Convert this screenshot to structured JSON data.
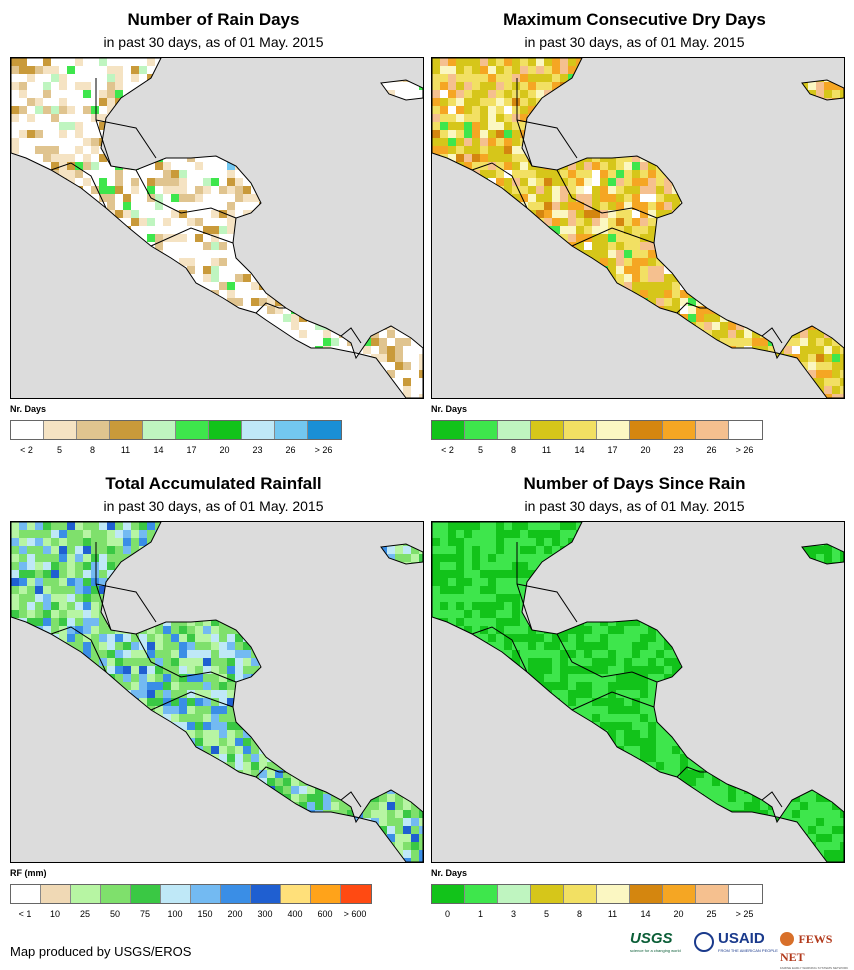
{
  "panels": [
    {
      "id": "rain-days",
      "title": "Number of Rain Days",
      "subtitle": "in past 30 days, as of 01 May. 2015",
      "legend_title": "Nr. Days",
      "legend_colors": [
        "#ffffff",
        "#f5e3c3",
        "#e0c48f",
        "#c99a3a",
        "#bff5c0",
        "#3ee64c",
        "#12c31a",
        "#bfe8f7",
        "#73c7f0",
        "#1a8fd6"
      ],
      "legend_labels": [
        "< 2",
        "5",
        "8",
        "11",
        "14",
        "17",
        "20",
        "23",
        "26",
        "> 26"
      ],
      "map_palette": [
        "#ffffff",
        "#f5e3c3",
        "#e0c48f",
        "#c99a3a",
        "#bff5c0",
        "#3ee64c",
        "#73c7f0"
      ],
      "map_weights": [
        0.55,
        0.2,
        0.12,
        0.05,
        0.04,
        0.03,
        0.01
      ]
    },
    {
      "id": "max-dry-days",
      "title": "Maximum Consecutive Dry Days",
      "subtitle": "in past 30 days, as of 01 May. 2015",
      "legend_title": "Nr. Days",
      "legend_colors": [
        "#12c31a",
        "#3ee64c",
        "#bff5c0",
        "#d6c61a",
        "#f2e063",
        "#fbf7c2",
        "#d4860f",
        "#f5a623",
        "#f5c08f",
        "#ffffff"
      ],
      "legend_labels": [
        "< 2",
        "5",
        "8",
        "11",
        "14",
        "17",
        "20",
        "23",
        "26",
        "> 26"
      ],
      "map_palette": [
        "#d6c61a",
        "#f2e063",
        "#fbf7c2",
        "#f5a623",
        "#f5c08f",
        "#ffffff",
        "#3ee64c",
        "#d4860f"
      ],
      "map_weights": [
        0.3,
        0.25,
        0.08,
        0.12,
        0.12,
        0.05,
        0.04,
        0.04
      ]
    },
    {
      "id": "total-rainfall",
      "title": "Total Accumulated Rainfall",
      "subtitle": "in past 30 days, as of 01 May. 2015",
      "legend_title": "RF (mm)",
      "legend_colors": [
        "#ffffff",
        "#f0d9b5",
        "#b7f5a3",
        "#7fe06c",
        "#3ac844",
        "#bfe8f7",
        "#73baf2",
        "#3a8ee6",
        "#1f5fd1",
        "#ffe07a",
        "#ffa31a",
        "#ff4a12"
      ],
      "legend_labels": [
        "< 1",
        "10",
        "25",
        "50",
        "75",
        "100",
        "150",
        "200",
        "300",
        "400",
        "600",
        "> 600"
      ],
      "map_palette": [
        "#7fe06c",
        "#b7f5a3",
        "#3ac844",
        "#73baf2",
        "#3a8ee6",
        "#bfe8f7",
        "#1f5fd1"
      ],
      "map_weights": [
        0.35,
        0.2,
        0.1,
        0.12,
        0.1,
        0.08,
        0.05
      ]
    },
    {
      "id": "days-since-rain",
      "title": "Number of Days Since Rain",
      "subtitle": "in past 30 days, as of 01 May. 2015",
      "legend_title": "Nr. Days",
      "legend_colors": [
        "#12c31a",
        "#3ee64c",
        "#bff5c0",
        "#d6c61a",
        "#f2e063",
        "#fbf7c2",
        "#d4860f",
        "#f5a623",
        "#f5c08f",
        "#ffffff"
      ],
      "legend_labels": [
        "0",
        "1",
        "3",
        "5",
        "8",
        "11",
        "14",
        "20",
        "25",
        "> 25"
      ],
      "map_palette": [
        "#12c31a",
        "#3ee64c",
        "#12c31a",
        "#3ee64c"
      ],
      "map_weights": [
        0.45,
        0.45,
        0.05,
        0.05
      ]
    }
  ],
  "footer": "Map produced by USGS/EROS",
  "logos": [
    "USGS",
    "USAID",
    "FEWS NET"
  ],
  "logo_taglines": [
    "science for a changing world",
    "FROM THE AMERICAN PEOPLE",
    "FAMINE EARLY WARNING SYSTEMS NETWORK"
  ],
  "colors": {
    "ocean": "#dcdcdc",
    "border": "#000000"
  }
}
